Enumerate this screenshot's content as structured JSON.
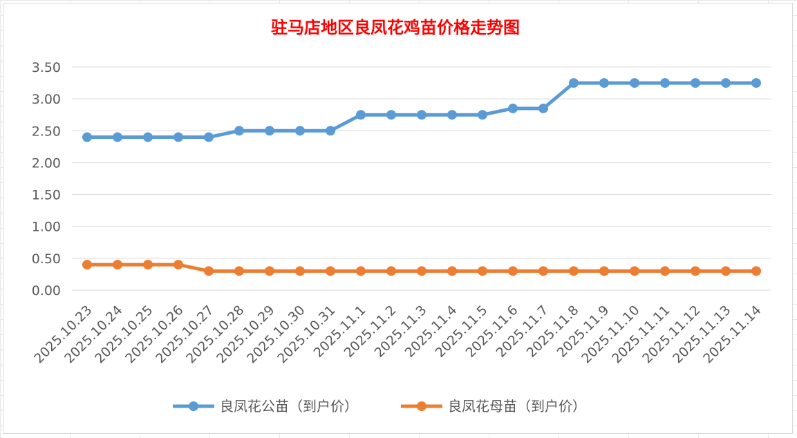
{
  "chart_data": {
    "type": "line",
    "title": "驻马店地区良凤花鸡苗价格走势图",
    "categories": [
      "2025.10.23",
      "2025.10.24",
      "2025.10.25",
      "2025.10.26",
      "2025.10.27",
      "2025.10.28",
      "2025.10.29",
      "2025.10.30",
      "2025.10.31",
      "2025.11.1",
      "2025.11.2",
      "2025.11.3",
      "2025.11.4",
      "2025.11.5",
      "2025.11.6",
      "2025.11.7",
      "2025.11.8",
      "2025.11.9",
      "2025.11.10",
      "2025.11.11",
      "2025.11.12",
      "2025.11.13",
      "2025.11.14"
    ],
    "series": [
      {
        "name": "良凤花公苗（到户价）",
        "color": "#5b9bd5",
        "values": [
          2.4,
          2.4,
          2.4,
          2.4,
          2.4,
          2.5,
          2.5,
          2.5,
          2.5,
          2.75,
          2.75,
          2.75,
          2.75,
          2.75,
          2.85,
          2.85,
          3.25,
          3.25,
          3.25,
          3.25,
          3.25,
          3.25,
          3.25
        ]
      },
      {
        "name": "良凤花母苗（到户价）",
        "color": "#ed7d31",
        "values": [
          0.4,
          0.4,
          0.4,
          0.4,
          0.3,
          0.3,
          0.3,
          0.3,
          0.3,
          0.3,
          0.3,
          0.3,
          0.3,
          0.3,
          0.3,
          0.3,
          0.3,
          0.3,
          0.3,
          0.3,
          0.3,
          0.3,
          0.3
        ]
      }
    ],
    "yticks": [
      "0.00",
      "0.50",
      "1.00",
      "1.50",
      "2.00",
      "2.50",
      "3.00",
      "3.50"
    ],
    "ylim": [
      0,
      3.5
    ],
    "grid": true,
    "legend_position": "bottom"
  }
}
